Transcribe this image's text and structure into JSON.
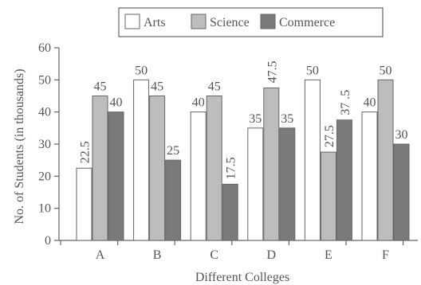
{
  "chart_data": {
    "type": "bar",
    "xlabel": "Different Colleges",
    "ylabel": "No. of Students (in thousands)",
    "ylim": [
      0,
      60
    ],
    "yticks": [
      "0",
      "10",
      "20",
      "30",
      "40",
      "50",
      "60"
    ],
    "categories": [
      "A",
      "B",
      "C",
      "D",
      "E",
      "F"
    ],
    "series": [
      {
        "name": "Arts",
        "values": [
          22.5,
          50,
          40,
          35,
          50,
          40
        ],
        "labels": [
          "22.5",
          "50",
          "40",
          "35",
          "50",
          "40"
        ],
        "color": "#ffffff"
      },
      {
        "name": "Science",
        "values": [
          45,
          45,
          45,
          47.5,
          27.5,
          50
        ],
        "labels": [
          "45",
          "45",
          "45",
          "47.5",
          "27.5",
          "50"
        ],
        "color": "#bdbdbd"
      },
      {
        "name": "Commerce",
        "values": [
          40,
          25,
          17.5,
          35,
          37.5,
          30
        ],
        "labels": [
          "40",
          "25",
          "17.5",
          "35",
          "37 .5",
          "30"
        ],
        "color": "#7a7a7a"
      }
    ],
    "legend_position": "top-center",
    "grid": false
  }
}
